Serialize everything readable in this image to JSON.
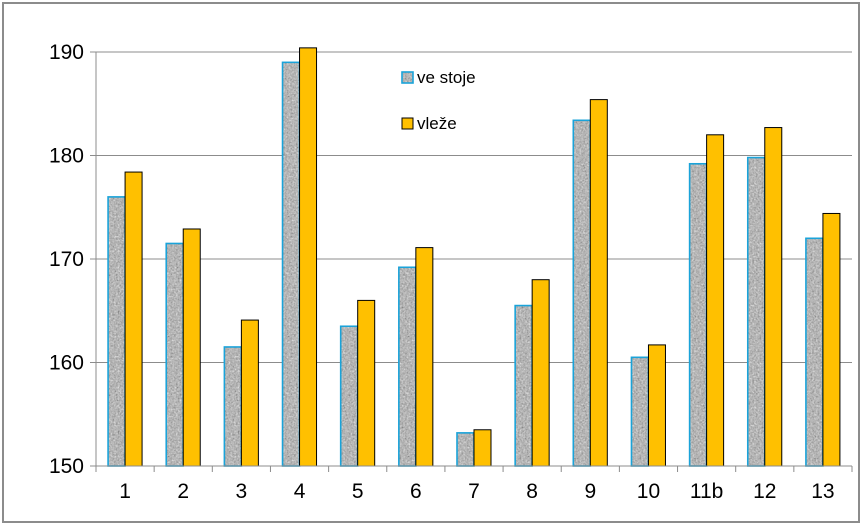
{
  "chart_data": {
    "type": "bar",
    "categories": [
      "1",
      "2",
      "3",
      "4",
      "5",
      "6",
      "7",
      "8",
      "9",
      "10",
      "11b",
      "12",
      "13"
    ],
    "series": [
      {
        "name": "ve stoje",
        "values": [
          176,
          171.5,
          161.5,
          189,
          163.5,
          169.2,
          153.2,
          165.5,
          183.4,
          160.5,
          179.2,
          179.8,
          172
        ],
        "color": "#9a9a9a",
        "border_color": "#1aa3d9",
        "fill_style": "gray-stone-texture"
      },
      {
        "name": "vleže",
        "values": [
          178.4,
          172.9,
          164.1,
          190.4,
          166,
          171.1,
          153.5,
          168,
          185.4,
          161.7,
          182,
          182.7,
          174.4
        ],
        "color": "#ffc000",
        "border_color": "#000000"
      }
    ],
    "y_ticks": [
      "150",
      "160",
      "170",
      "180",
      "190"
    ],
    "ylim": [
      150,
      190
    ],
    "grid": "horizontal",
    "legend_position": "top-center",
    "title": "",
    "xlabel": "",
    "ylabel": ""
  }
}
